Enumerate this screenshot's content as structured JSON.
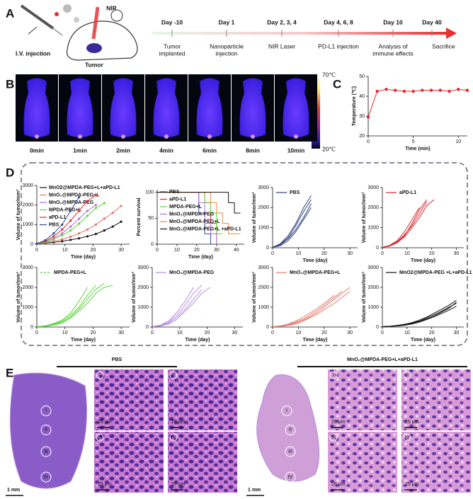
{
  "panel_labels": [
    "A",
    "B",
    "C",
    "D",
    "E"
  ],
  "panel_a": {
    "injection": "I.V. injection",
    "laser": "NIR",
    "tumor": "Tumor",
    "timeline": [
      {
        "day": "Day -10",
        "event": [
          "Tumor",
          "implanted"
        ]
      },
      {
        "day": "Day 1",
        "event": [
          "Nanoparticle",
          "injection"
        ]
      },
      {
        "day": "Day 2, 3, 4",
        "event": [
          "NIR Laser"
        ]
      },
      {
        "day": "Day 4, 6, 8",
        "event": [
          "PD-L1 injection"
        ]
      },
      {
        "day": "Day 10",
        "event": [
          "Analysis of",
          "immune effects"
        ]
      },
      {
        "day": "Day 40",
        "event": [
          "Sacrifice"
        ]
      }
    ]
  },
  "panel_b": {
    "times": [
      "0min",
      "1min",
      "2min",
      "4min",
      "6min",
      "8min",
      "10min"
    ],
    "colorbar_max": "70℃",
    "colorbar_min": "20℃"
  },
  "panel_e": {
    "groups": [
      {
        "title": "PBS",
        "regions": [
          "I",
          "II",
          "III",
          "IV"
        ],
        "scale_large": "1 mm",
        "scale_small": "25 μm"
      },
      {
        "title": "MnO₂@MPDA-PEG+L+aPD-L1",
        "regions": [
          "I",
          "II",
          "III",
          "IV"
        ],
        "scale_large": "1 mm",
        "scale_small": "25 μm"
      }
    ]
  },
  "chart_data": [
    {
      "type": "line",
      "markers": true,
      "x_label": "Time (min)",
      "y_label": "Temperature (℃)",
      "x": [
        0,
        1,
        2,
        3,
        4,
        5,
        6,
        7,
        8,
        9,
        10,
        11
      ],
      "xlim": [
        0,
        11
      ],
      "ylim": [
        20,
        50
      ],
      "xticks": [
        0,
        5,
        10
      ],
      "yticks": [
        20,
        30,
        40,
        50
      ],
      "series": [
        {
          "color": "#e8262a",
          "values": [
            29.5,
            42.5,
            43.5,
            43,
            42.5,
            42.5,
            43,
            43,
            43,
            42.5,
            43.5,
            43
          ]
        }
      ]
    },
    {
      "type": "line",
      "markers": true,
      "legend_position": "upper left",
      "x_label": "Time (day)",
      "y_label": "Volume of tumor/mm³",
      "x": [
        0,
        3,
        6,
        9,
        12,
        15,
        18,
        21,
        24,
        27,
        30
      ],
      "xlim": [
        0,
        33
      ],
      "ylim": [
        0,
        3000
      ],
      "xticks": [
        0,
        10,
        20,
        30
      ],
      "yticks": [
        0,
        1000,
        2000,
        3000
      ],
      "series": [
        {
          "name": "MnO2@MPDA-PEG+L+aPD-L1",
          "color": "#111111",
          "values": [
            30,
            60,
            100,
            150,
            220,
            300,
            400,
            520,
            700,
            900,
            1150
          ]
        },
        {
          "name": "MnO₂@MPDA-PEG+L",
          "color": "#e8736a",
          "values": [
            30,
            80,
            150,
            250,
            380,
            550,
            750,
            1000,
            1300,
            1600,
            1950
          ]
        },
        {
          "name": "MnO₂@MPDA-PEG",
          "color": "#b46ee0",
          "values": [
            30,
            120,
            300,
            550,
            900,
            1300,
            1700,
            2000,
            null,
            null,
            null
          ]
        },
        {
          "name": "MPDA-PEG+L",
          "color": "#5bd63c",
          "values": [
            30,
            110,
            250,
            450,
            700,
            1050,
            1450,
            1850,
            2100,
            null,
            null
          ]
        },
        {
          "name": "aPD-L1",
          "color": "#e8262a",
          "values": [
            30,
            150,
            400,
            750,
            1200,
            1700,
            2200,
            2500,
            null,
            null,
            null
          ]
        },
        {
          "name": "PBS",
          "color": "#2b4aa0",
          "values": [
            30,
            200,
            550,
            1000,
            1700,
            2400,
            null,
            null,
            null,
            null,
            null
          ]
        }
      ]
    },
    {
      "type": "step",
      "legend_position": "upper left",
      "x_label": "Time (day)",
      "y_label": "Percent survival",
      "x": [
        0,
        15,
        18,
        21,
        24,
        27,
        30,
        33,
        36,
        39,
        42
      ],
      "xlim": [
        0,
        44
      ],
      "ylim": [
        0,
        105
      ],
      "xticks": [
        0,
        10,
        20,
        30,
        40
      ],
      "yticks": [
        0,
        50,
        100
      ],
      "series": [
        {
          "name": "PBS",
          "color": "#2b4aa0",
          "values": [
            100,
            100,
            100,
            60,
            20,
            0,
            null,
            null,
            null,
            null,
            null
          ]
        },
        {
          "name": "aPD-L1",
          "color": "#e8262a",
          "values": [
            100,
            100,
            100,
            100,
            80,
            40,
            0,
            null,
            null,
            null,
            null
          ]
        },
        {
          "name": "MPDA-PEG+L",
          "color": "#5bd63c",
          "values": [
            100,
            100,
            100,
            100,
            80,
            60,
            20,
            20,
            null,
            null,
            null
          ]
        },
        {
          "name": "MnO₂@MPDA-PEG",
          "color": "#b46ee0",
          "values": [
            100,
            100,
            100,
            80,
            40,
            20,
            0,
            null,
            null,
            null,
            null
          ]
        },
        {
          "name": "MnO₂@MPDA-PEG+L",
          "color": "#f08a3c",
          "values": [
            100,
            100,
            100,
            100,
            100,
            80,
            60,
            40,
            20,
            20,
            20
          ]
        },
        {
          "name": "MnO₂@MPDA-PEG+L +aPD-L1",
          "color": "#111111",
          "values": [
            100,
            100,
            100,
            100,
            100,
            100,
            100,
            100,
            80,
            60,
            60
          ]
        }
      ]
    },
    {
      "type": "line",
      "legend": "PBS",
      "x_label": "Time (day)",
      "y_label": "Volume of tumor/mm³",
      "x": [
        0,
        3,
        6,
        9,
        12,
        15,
        18,
        21,
        24,
        27,
        30
      ],
      "xlim": [
        0,
        33
      ],
      "ylim": [
        0,
        3000
      ],
      "xticks": [
        0,
        10,
        20,
        30
      ],
      "yticks": [
        0,
        1000,
        2000,
        3000
      ],
      "series": [
        {
          "color": "#2b3f7a",
          "values": [
            20,
            150,
            450,
            900,
            1500,
            2200,
            null,
            null,
            null,
            null,
            null
          ]
        },
        {
          "color": "#2b3f7a",
          "values": [
            20,
            200,
            600,
            1200,
            2000,
            2600,
            null,
            null,
            null,
            null,
            null
          ]
        },
        {
          "color": "#2b3f7a",
          "values": [
            20,
            100,
            350,
            800,
            1400,
            2000,
            null,
            null,
            null,
            null,
            null
          ]
        },
        {
          "color": "#2b3f7a",
          "values": [
            20,
            180,
            500,
            1100,
            1800,
            2400,
            null,
            null,
            null,
            null,
            null
          ]
        }
      ]
    },
    {
      "type": "line",
      "legend": "aPD-L1",
      "x_label": "Time (day)",
      "y_label": "Volume of tumor/mm³",
      "x": [
        0,
        3,
        6,
        9,
        12,
        15,
        18,
        21,
        24,
        27,
        30
      ],
      "xlim": [
        0,
        33
      ],
      "ylim": [
        0,
        3000
      ],
      "xticks": [
        0,
        10,
        20,
        30
      ],
      "yticks": [
        0,
        1000,
        2000,
        3000
      ],
      "series": [
        {
          "color": "#d9262a",
          "values": [
            20,
            100,
            300,
            650,
            1100,
            1700,
            2300,
            null,
            null,
            null,
            null
          ]
        },
        {
          "color": "#d9262a",
          "values": [
            20,
            80,
            250,
            550,
            1000,
            1500,
            2100,
            2400,
            null,
            null,
            null
          ]
        },
        {
          "color": "#d9262a",
          "values": [
            20,
            120,
            350,
            800,
            1400,
            2000,
            null,
            null,
            null,
            null,
            null
          ]
        },
        {
          "color": "#d9262a",
          "values": [
            20,
            90,
            280,
            600,
            1200,
            1900,
            2400,
            null,
            null,
            null,
            null
          ]
        }
      ]
    },
    {
      "type": "line",
      "legend": "MPDA-PEG+L",
      "x_label": "Time (day)",
      "y_label": "Volume of tumor/mm³",
      "x": [
        0,
        3,
        6,
        9,
        12,
        15,
        18,
        21,
        24,
        27,
        30
      ],
      "xlim": [
        0,
        33
      ],
      "ylim": [
        0,
        3000
      ],
      "xticks": [
        0,
        10,
        20,
        30
      ],
      "yticks": [
        0,
        1000,
        2000,
        3000
      ],
      "series": [
        {
          "color": "#5bd63c",
          "values": [
            20,
            50,
            150,
            300,
            600,
            1000,
            1600,
            2100,
            null,
            null,
            null
          ]
        },
        {
          "color": "#5bd63c",
          "values": [
            20,
            40,
            120,
            250,
            500,
            900,
            1400,
            1900,
            2200,
            null,
            null
          ]
        },
        {
          "color": "#5bd63c",
          "values": [
            20,
            60,
            180,
            350,
            700,
            1300,
            2000,
            null,
            null,
            null,
            null
          ]
        },
        {
          "color": "#5bd63c",
          "values": [
            20,
            30,
            100,
            200,
            450,
            800,
            1200,
            1700,
            2000,
            2100,
            null
          ]
        }
      ]
    },
    {
      "type": "line",
      "legend": "MnO₂@MPDA-PEG",
      "x_label": "Time (day)",
      "y_label": "Volume of tumor/mm³",
      "x": [
        0,
        3,
        6,
        9,
        12,
        15,
        18,
        21,
        24,
        27,
        30
      ],
      "xlim": [
        0,
        33
      ],
      "ylim": [
        0,
        3000
      ],
      "xticks": [
        0,
        10,
        20,
        30
      ],
      "yticks": [
        0,
        1000,
        2000,
        3000
      ],
      "series": [
        {
          "color": "#b48be6",
          "values": [
            20,
            80,
            250,
            600,
            1100,
            1700,
            2100,
            null,
            null,
            null,
            null
          ]
        },
        {
          "color": "#b48be6",
          "values": [
            20,
            60,
            200,
            500,
            900,
            1400,
            1900,
            null,
            null,
            null,
            null
          ]
        },
        {
          "color": "#b48be6",
          "values": [
            20,
            100,
            300,
            750,
            1300,
            2000,
            null,
            null,
            null,
            null,
            null
          ]
        },
        {
          "color": "#b48be6",
          "values": [
            20,
            50,
            150,
            400,
            800,
            1200,
            1700,
            2000,
            null,
            null,
            null
          ]
        }
      ]
    },
    {
      "type": "line",
      "legend": "MnO₂@MPDA-PEG+L",
      "x_label": "Time (day)",
      "y_label": "Volume of tumor/mm³",
      "x": [
        0,
        3,
        6,
        9,
        12,
        15,
        18,
        21,
        24,
        27,
        30
      ],
      "xlim": [
        0,
        33
      ],
      "ylim": [
        0,
        3000
      ],
      "xticks": [
        0,
        10,
        20,
        30
      ],
      "yticks": [
        0,
        1000,
        2000,
        3000
      ],
      "series": [
        {
          "color": "#e67b6b",
          "values": [
            20,
            40,
            100,
            200,
            350,
            550,
            800,
            1100,
            1400,
            1700,
            2000
          ]
        },
        {
          "color": "#e67b6b",
          "values": [
            20,
            50,
            120,
            250,
            400,
            650,
            900,
            1200,
            1500,
            1800,
            null
          ]
        },
        {
          "color": "#e67b6b",
          "values": [
            20,
            30,
            80,
            150,
            300,
            500,
            700,
            950,
            1200,
            1500,
            1800
          ]
        },
        {
          "color": "#e67b6b",
          "values": [
            20,
            60,
            150,
            300,
            500,
            750,
            1000,
            1300,
            1600,
            null,
            null
          ]
        }
      ]
    },
    {
      "type": "line",
      "legend": "MnO2@MPDA-PEG +L+aPD-L1",
      "x_label": "Time (day)",
      "y_label": "Volume of tumor/mm³",
      "x": [
        0,
        3,
        6,
        9,
        12,
        15,
        18,
        21,
        24,
        27,
        30
      ],
      "xlim": [
        0,
        33
      ],
      "ylim": [
        0,
        3000
      ],
      "xticks": [
        0,
        10,
        20,
        30
      ],
      "yticks": [
        0,
        1000,
        2000,
        3000
      ],
      "series": [
        {
          "color": "#111111",
          "values": [
            20,
            30,
            60,
            100,
            180,
            280,
            400,
            550,
            750,
            950,
            1250
          ]
        },
        {
          "color": "#111111",
          "values": [
            20,
            40,
            80,
            140,
            220,
            350,
            500,
            700,
            900,
            1100,
            1350
          ]
        },
        {
          "color": "#111111",
          "values": [
            20,
            30,
            50,
            90,
            150,
            250,
            380,
            520,
            680,
            850,
            1050
          ]
        },
        {
          "color": "#111111",
          "values": [
            20,
            35,
            70,
            120,
            200,
            300,
            450,
            620,
            800,
            1000,
            1200
          ]
        }
      ]
    }
  ]
}
